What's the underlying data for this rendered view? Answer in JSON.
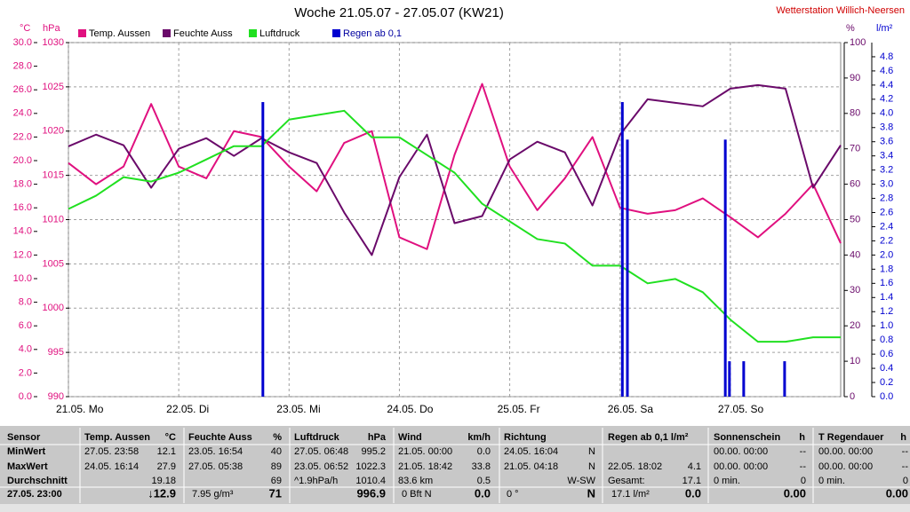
{
  "chart_data": {
    "type": "line",
    "title": "Woche 21.05.07 - 27.05.07",
    "subtitle": "(KW21)",
    "station": "Wetterstation Willich-Neersen",
    "grid": true,
    "xlim": [
      0,
      168
    ],
    "xticks": [
      {
        "value": 0,
        "label": "21.05.  Mo"
      },
      {
        "value": 24,
        "label": "22.05.  Di"
      },
      {
        "value": 48,
        "label": "23.05.  Mi"
      },
      {
        "value": 72,
        "label": "24.05.  Do"
      },
      {
        "value": 96,
        "label": "25.05.  Fr"
      },
      {
        "value": 120,
        "label": "26.05.  Sa"
      },
      {
        "value": 144,
        "label": "27.05.  So"
      }
    ],
    "x": [
      0,
      6,
      12,
      18,
      24,
      30,
      36,
      42,
      48,
      54,
      60,
      66,
      72,
      78,
      84,
      90,
      96,
      102,
      108,
      114,
      120,
      126,
      132,
      138,
      144,
      150,
      156,
      162,
      168
    ],
    "axes": [
      {
        "label": "°C",
        "color": "#e0107f",
        "lim": [
          0,
          30
        ],
        "ticks": [
          {
            "value": 0,
            "label": "0.0"
          },
          {
            "value": 2,
            "label": "2.0"
          },
          {
            "value": 4,
            "label": "4.0"
          },
          {
            "value": 6,
            "label": "6.0"
          },
          {
            "value": 8,
            "label": "8.0"
          },
          {
            "value": 10,
            "label": "10.0"
          },
          {
            "value": 12,
            "label": "12.0"
          },
          {
            "value": 14,
            "label": "14.0"
          },
          {
            "value": 16,
            "label": "16.0"
          },
          {
            "value": 18,
            "label": "18.0"
          },
          {
            "value": 20,
            "label": "20.0"
          },
          {
            "value": 22,
            "label": "22.0"
          },
          {
            "value": 24,
            "label": "24.0"
          },
          {
            "value": 26,
            "label": "26.0"
          },
          {
            "value": 28,
            "label": "28.0"
          },
          {
            "value": 30,
            "label": "30.0"
          }
        ]
      },
      {
        "label": "hPa",
        "color": "#e0107f",
        "lim": [
          990,
          1030
        ],
        "ticks": [
          990,
          995,
          1000,
          1005,
          1010,
          1015,
          1020,
          1025,
          1030
        ]
      },
      {
        "label": "%",
        "color": "#6a0a6a",
        "lim": [
          0,
          100
        ],
        "ticks": [
          0,
          10,
          20,
          30,
          40,
          50,
          60,
          70,
          80,
          90,
          100
        ]
      },
      {
        "label": "l/m²",
        "color": "#0000d0",
        "lim": [
          0,
          5
        ],
        "ticks": [
          {
            "value": 0,
            "label": "0.0"
          },
          {
            "value": 0.2,
            "label": "0.2"
          },
          {
            "value": 0.4,
            "label": "0.4"
          },
          {
            "value": 0.6,
            "label": "0.6"
          },
          {
            "value": 0.8,
            "label": "0.8"
          },
          {
            "value": 1.0,
            "label": "1.0"
          },
          {
            "value": 1.2,
            "label": "1.2"
          },
          {
            "value": 1.4,
            "label": "1.4"
          },
          {
            "value": 1.6,
            "label": "1.6"
          },
          {
            "value": 1.8,
            "label": "1.8"
          },
          {
            "value": 2.0,
            "label": "2.0"
          },
          {
            "value": 2.2,
            "label": "2.2"
          },
          {
            "value": 2.4,
            "label": "2.4"
          },
          {
            "value": 2.6,
            "label": "2.6"
          },
          {
            "value": 2.8,
            "label": "2.8"
          },
          {
            "value": 3.0,
            "label": "3.0"
          },
          {
            "value": 3.2,
            "label": "3.2"
          },
          {
            "value": 3.4,
            "label": "3.4"
          },
          {
            "value": 3.6,
            "label": "3.6"
          },
          {
            "value": 3.8,
            "label": "3.8"
          },
          {
            "value": 4.0,
            "label": "4.0"
          },
          {
            "value": 4.2,
            "label": "4.2"
          },
          {
            "value": 4.4,
            "label": "4.4"
          },
          {
            "value": 4.6,
            "label": "4.6"
          },
          {
            "value": 4.8,
            "label": "4.8"
          }
        ]
      }
    ],
    "series": [
      {
        "name": "Temp. Aussen",
        "color": "#e0107f",
        "axis": 0,
        "values": [
          19.8,
          18.0,
          19.5,
          24.8,
          19.5,
          18.5,
          22.5,
          22.0,
          19.5,
          17.4,
          21.5,
          22.5,
          13.5,
          12.5,
          20.5,
          26.5,
          19.5,
          15.8,
          18.5,
          22.0,
          16.0,
          15.5,
          15.8,
          16.8,
          15.2,
          13.5,
          15.5,
          18.0,
          13.0
        ]
      },
      {
        "name": "Feuchte Auss",
        "color": "#6a0a6a",
        "axis": 2,
        "values": [
          70.7,
          74,
          71,
          59,
          70,
          73,
          68,
          73,
          69,
          66,
          52,
          40,
          62,
          74,
          49,
          51,
          67,
          72,
          69,
          54,
          74,
          84,
          83,
          82,
          87,
          88,
          87,
          59,
          71
        ]
      },
      {
        "name": "Luftdruck",
        "color": "#20e020",
        "axis": 1,
        "values": [
          1011.2,
          1012.7,
          1014.8,
          1014.3,
          1015.3,
          1016.8,
          1018.3,
          1018.3,
          1021.3,
          1021.8,
          1022.3,
          1019.3,
          1019.3,
          1017.3,
          1015.3,
          1011.8,
          1009.8,
          1007.8,
          1007.3,
          1004.8,
          1004.8,
          1002.8,
          1003.3,
          1001.8,
          998.7,
          996.2,
          996.2,
          996.7,
          996.7
        ]
      },
      {
        "name": "Regen ab 0,1",
        "color": "#0000d0",
        "axis": 3,
        "type": "bar",
        "x": [
          42.3,
          120.5,
          121.6,
          142.9,
          143.8,
          146.9,
          155.8
        ],
        "values": [
          4.16,
          4.16,
          3.63,
          3.63,
          0.5,
          0.5,
          0.5
        ]
      }
    ]
  },
  "table": {
    "header": [
      "Sensor",
      "Temp. Aussen",
      "°C",
      "Feuchte Auss",
      "%",
      "Luftdruck",
      "hPa",
      "Wind",
      "km/h",
      "Richtung",
      "Regen ab 0,1 l/m²",
      "Sonnenschein",
      "h",
      "T Regendauer",
      "h"
    ],
    "rows": [
      [
        "MinWert",
        "27.05.  23:58",
        "12.1",
        "23.05.  16:54",
        "40",
        "27.05.  06:48",
        "995.2",
        "21.05.  00:00",
        "0.0",
        "24.05.  16:04",
        "N",
        "00.00.  00:00",
        "--",
        "00.00.  00:00",
        "--"
      ],
      [
        "MaxWert",
        "24.05.  16:14",
        "27.9",
        "27.05.  05:38",
        "89",
        "23.05.  06:52",
        "1022.3",
        "21.05.  18:42",
        "33.8",
        "21.05.  04:18",
        "N",
        "22.05.  18:02",
        "4.1",
        "00.00.  00:00",
        "--",
        "00.00.  00:00",
        "--"
      ],
      [
        "Durchschnitt",
        "19.18",
        "69",
        "^1.9hPa/h",
        "1010.4",
        "83.6 km",
        "0.5",
        "W-SW",
        "Gesamt:",
        "17.1",
        "0 min.",
        "0",
        "0 min.",
        "0"
      ],
      [
        "27.05. 23:00",
        "↓12.9",
        "7.95 g/m³",
        "71",
        "996.9",
        "0 Bft N",
        "0.0",
        "0 °",
        "N",
        "17.1 l/m²",
        "0.0",
        "0.00",
        "0.00"
      ]
    ]
  }
}
